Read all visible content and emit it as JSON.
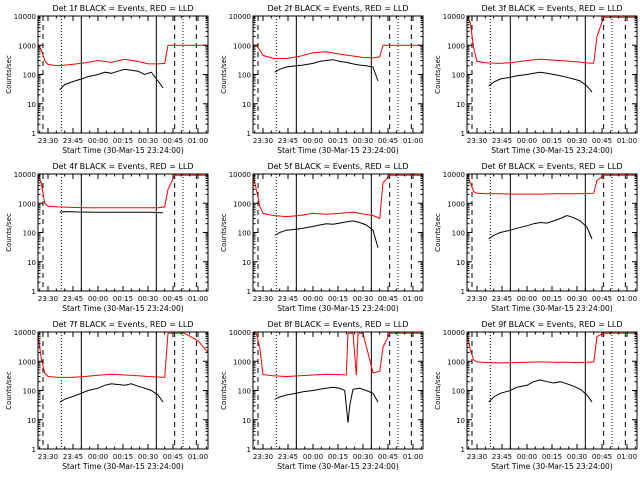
{
  "colors": {
    "background": "#ffffff",
    "axes": "#000000",
    "events": "#000000",
    "lld": "#ff0000"
  },
  "panel_rows": [
    [
      "Det 1f BLACK = Events, RED = LLD",
      "Det 2f BLACK = Events, RED = LLD",
      "Det 3f BLACK = Events, RED = LLD"
    ],
    [
      "Det 4f BLACK = Events, RED = LLD",
      "Det 5f BLACK = Events, RED = LLD",
      "Det 6f BLACK = Events, RED = LLD"
    ],
    [
      "Det 7f BLACK = Events, RED = LLD",
      "Det 8f BLACK = Events, RED = LLD",
      "Det 9f BLACK = Events, RED = LLD"
    ]
  ],
  "chart_data": {
    "type": "line",
    "layout": "3x3 grid",
    "ylabel": "Counts/sec",
    "xlabel": "Start Time (30-Mar-15 23:24:00)",
    "x_ticks": [
      "23:30",
      "23:45",
      "00:00",
      "00:15",
      "00:30",
      "00:45",
      "01:00"
    ],
    "x_tick_minutes": [
      6,
      21,
      36,
      51,
      66,
      81,
      96
    ],
    "xlim_minutes": [
      0,
      102
    ],
    "y_scale": "log",
    "y_ticks": [
      "1",
      "10",
      "100",
      "1000",
      "10000"
    ],
    "ylim": [
      1,
      10000
    ],
    "series_colors": {
      "events": "black",
      "lld": "red"
    },
    "vertical_lines": {
      "dashed_minutes": [
        3,
        82,
        95
      ],
      "dotted_minutes": [
        14,
        87
      ],
      "solid_minutes": [
        26,
        71
      ]
    },
    "panels": [
      {
        "title": "Det 1f BLACK = Events, RED = LLD",
        "lld": {
          "x": [
            0,
            2,
            4,
            6,
            12,
            20,
            28,
            36,
            44,
            52,
            60,
            66,
            72,
            76,
            78,
            82,
            88,
            96,
            102
          ],
          "y": [
            1000,
            700,
            300,
            220,
            200,
            220,
            250,
            300,
            260,
            330,
            280,
            230,
            230,
            240,
            1000,
            1000,
            1000,
            1000,
            1000
          ]
        },
        "events": {
          "x": [
            13,
            16,
            20,
            26,
            30,
            36,
            40,
            44,
            48,
            52,
            56,
            60,
            64,
            68,
            72,
            75
          ],
          "y": [
            30,
            45,
            55,
            70,
            85,
            100,
            120,
            110,
            130,
            150,
            140,
            130,
            100,
            120,
            60,
            35
          ]
        }
      },
      {
        "title": "Det 2f BLACK = Events, RED = LLD",
        "lld": {
          "x": [
            0,
            2,
            4,
            6,
            12,
            20,
            28,
            36,
            44,
            52,
            60,
            66,
            72,
            76,
            78,
            82,
            88,
            96,
            102
          ],
          "y": [
            1000,
            1000,
            700,
            450,
            360,
            350,
            420,
            550,
            600,
            500,
            430,
            380,
            370,
            400,
            1000,
            1000,
            1000,
            1000,
            1000
          ]
        },
        "events": {
          "x": [
            13,
            16,
            20,
            26,
            30,
            36,
            40,
            44,
            48,
            52,
            56,
            60,
            64,
            68,
            72,
            75
          ],
          "y": [
            120,
            150,
            180,
            200,
            210,
            240,
            280,
            300,
            320,
            280,
            260,
            230,
            210,
            200,
            180,
            60
          ]
        }
      },
      {
        "title": "Det 3f BLACK = Events, RED = LLD",
        "lld": {
          "x": [
            0,
            2,
            4,
            6,
            12,
            20,
            28,
            36,
            44,
            52,
            60,
            66,
            72,
            76,
            78,
            82,
            88,
            96,
            102
          ],
          "y": [
            9000,
            6000,
            800,
            280,
            250,
            240,
            260,
            300,
            330,
            310,
            290,
            270,
            250,
            240,
            2000,
            9000,
            9000,
            9000,
            9000
          ]
        },
        "events": {
          "x": [
            13,
            16,
            20,
            26,
            30,
            36,
            40,
            44,
            48,
            52,
            56,
            60,
            64,
            68,
            72,
            75
          ],
          "y": [
            40,
            55,
            70,
            80,
            90,
            100,
            110,
            120,
            110,
            100,
            90,
            80,
            70,
            60,
            40,
            25
          ]
        }
      },
      {
        "title": "Det 4f BLACK = Events, RED = LLD",
        "lld": {
          "x": [
            0,
            2,
            4,
            6,
            12,
            20,
            28,
            36,
            44,
            52,
            60,
            66,
            72,
            76,
            78,
            82,
            88,
            96,
            102
          ],
          "y": [
            9000,
            5000,
            1000,
            800,
            750,
            720,
            700,
            700,
            700,
            700,
            700,
            700,
            700,
            750,
            3000,
            9000,
            9000,
            9000,
            9000
          ]
        },
        "events": {
          "x": [
            13,
            16,
            20,
            26,
            30,
            36,
            40,
            44,
            48,
            52,
            56,
            60,
            64,
            68,
            72,
            75
          ],
          "y": [
            500,
            520,
            510,
            500,
            500,
            490,
            490,
            490,
            490,
            490,
            490,
            490,
            490,
            490,
            480,
            470
          ]
        }
      },
      {
        "title": "Det 5f BLACK = Events, RED = LLD",
        "lld": {
          "x": [
            0,
            2,
            4,
            6,
            12,
            20,
            28,
            36,
            44,
            52,
            60,
            66,
            72,
            76,
            78,
            82,
            88,
            96,
            102
          ],
          "y": [
            9000,
            3000,
            800,
            450,
            380,
            350,
            380,
            450,
            420,
            450,
            500,
            430,
            380,
            300,
            5000,
            9000,
            9000,
            9000,
            9000
          ]
        },
        "events": {
          "x": [
            13,
            16,
            20,
            26,
            30,
            36,
            40,
            44,
            48,
            52,
            56,
            60,
            64,
            68,
            72,
            75
          ],
          "y": [
            80,
            100,
            120,
            130,
            140,
            160,
            180,
            200,
            190,
            210,
            230,
            250,
            220,
            180,
            120,
            30
          ]
        }
      },
      {
        "title": "Det 6f BLACK = Events, RED = LLD",
        "lld": {
          "x": [
            0,
            2,
            4,
            6,
            12,
            20,
            28,
            36,
            44,
            52,
            60,
            66,
            72,
            76,
            78,
            82,
            88,
            96,
            102
          ],
          "y": [
            9000,
            5000,
            2500,
            2200,
            2100,
            2100,
            2050,
            2050,
            2050,
            2100,
            2100,
            2100,
            2150,
            2200,
            6000,
            9000,
            9000,
            9000,
            9000
          ]
        },
        "events": {
          "x": [
            13,
            16,
            20,
            26,
            30,
            36,
            40,
            44,
            48,
            52,
            56,
            60,
            64,
            68,
            72,
            75
          ],
          "y": [
            60,
            80,
            100,
            120,
            140,
            170,
            200,
            220,
            210,
            250,
            300,
            380,
            320,
            250,
            150,
            60
          ]
        }
      },
      {
        "title": "Det 7f BLACK = Events, RED = LLD",
        "lld": {
          "x": [
            0,
            2,
            4,
            6,
            12,
            20,
            28,
            36,
            44,
            52,
            60,
            66,
            72,
            76,
            78,
            82,
            88,
            96,
            102
          ],
          "y": [
            9000,
            1200,
            400,
            300,
            280,
            280,
            300,
            330,
            360,
            340,
            320,
            300,
            290,
            280,
            9000,
            9000,
            9000,
            5000,
            2000
          ]
        },
        "events": {
          "x": [
            13,
            16,
            20,
            26,
            30,
            36,
            40,
            44,
            48,
            52,
            56,
            60,
            64,
            68,
            72,
            75
          ],
          "y": [
            40,
            50,
            60,
            80,
            100,
            120,
            150,
            170,
            160,
            150,
            170,
            140,
            120,
            100,
            70,
            40
          ]
        }
      },
      {
        "title": "Det 8f BLACK = Events, RED = LLD",
        "lld": {
          "x": [
            0,
            2,
            4,
            6,
            12,
            20,
            28,
            36,
            44,
            52,
            56,
            57,
            60,
            62,
            63,
            66,
            72,
            76,
            78,
            82,
            88,
            96,
            102
          ],
          "y": [
            9000,
            9000,
            3000,
            350,
            320,
            300,
            320,
            340,
            360,
            350,
            340,
            9000,
            9000,
            340,
            9000,
            9000,
            400,
            450,
            3000,
            9000,
            9000,
            9000,
            9000
          ]
        },
        "events": {
          "x": [
            13,
            16,
            20,
            26,
            30,
            36,
            40,
            44,
            48,
            52,
            55,
            57,
            58,
            60,
            64,
            68,
            72,
            75
          ],
          "y": [
            50,
            60,
            70,
            80,
            90,
            100,
            110,
            120,
            130,
            120,
            100,
            8,
            30,
            110,
            120,
            100,
            80,
            40
          ]
        }
      },
      {
        "title": "Det 9f BLACK = Events, RED = LLD",
        "lld": {
          "x": [
            0,
            2,
            4,
            6,
            12,
            20,
            28,
            36,
            44,
            52,
            60,
            66,
            72,
            76,
            78,
            82,
            88,
            96,
            102
          ],
          "y": [
            9000,
            2500,
            1100,
            950,
            900,
            880,
            900,
            920,
            950,
            930,
            920,
            900,
            920,
            950,
            7000,
            9000,
            9000,
            9000,
            9000
          ]
        },
        "events": {
          "x": [
            13,
            16,
            20,
            26,
            30,
            36,
            40,
            44,
            48,
            52,
            56,
            60,
            64,
            68,
            72,
            75
          ],
          "y": [
            40,
            60,
            80,
            100,
            130,
            150,
            200,
            230,
            200,
            180,
            200,
            170,
            140,
            110,
            70,
            40
          ]
        }
      }
    ]
  }
}
